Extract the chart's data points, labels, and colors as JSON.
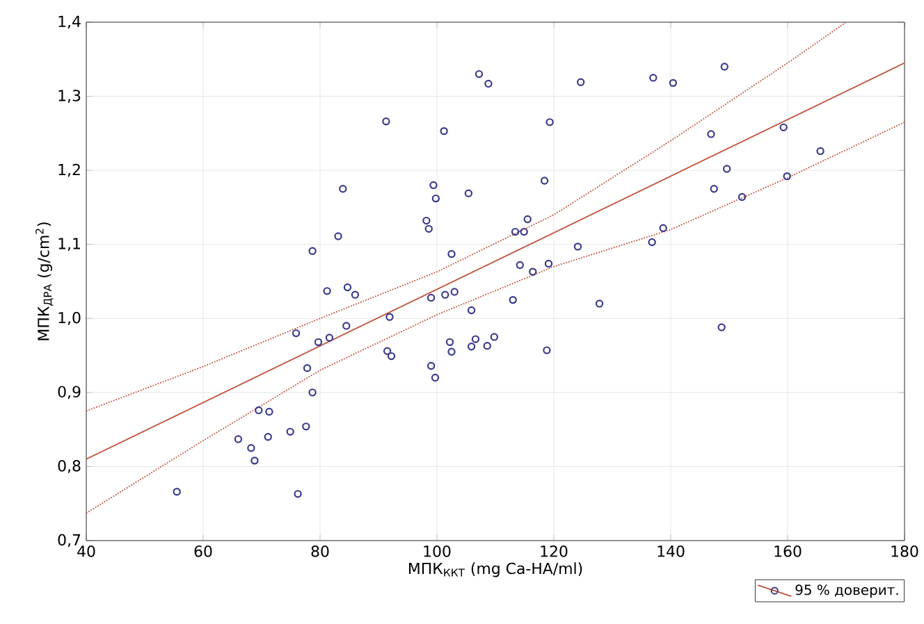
{
  "chart_data": {
    "type": "scatter",
    "xlabel": "МПК$_{ККТ}$ (mg Ca-HA/ml)",
    "ylabel": "МПК$_{ДРА}$ (g/cm$^{2}$)",
    "xlim": [
      40,
      180
    ],
    "xticks": [
      40,
      60,
      80,
      100,
      120,
      140,
      160,
      180
    ],
    "ylim": [
      0.7,
      1.4
    ],
    "yticks": [
      {
        "value": 0.7,
        "label": "0,7"
      },
      {
        "value": 0.8,
        "label": "0,8"
      },
      {
        "value": 0.9,
        "label": "0,9"
      },
      {
        "value": 1.0,
        "label": "1,0"
      },
      {
        "value": 1.1,
        "label": "1,1"
      },
      {
        "value": 1.2,
        "label": "1,2"
      },
      {
        "value": 1.3,
        "label": "1,3"
      },
      {
        "value": 1.4,
        "label": "1,4"
      }
    ],
    "grid": true,
    "legend": "bottom right",
    "series": [
      {
        "color": "#3a3a8c",
        "marker": "circle",
        "x": [
          107.2,
          108.8,
          91.3,
          101.2,
          83.9,
          99.4,
          99.8,
          105.4,
          98.2,
          98.6,
          83.1,
          78.7,
          102.5,
          81.2,
          84.7,
          86.0,
          99.0,
          101.4,
          103.0,
          105.9,
          91.9,
          124.6,
          137.0,
          140.4,
          149.2,
          119.3,
          146.9,
          159.3,
          165.6,
          149.6,
          159.9,
          118.4,
          147.4,
          152.2,
          115.5,
          113.4,
          114.9,
          138.7,
          136.8,
          124.1,
          114.2,
          116.4,
          119.1,
          113.0,
          127.8,
          75.9,
          79.7,
          81.6,
          84.5,
          102.2,
          102.5,
          105.9,
          106.6,
          108.6,
          91.5,
          92.2,
          99.0,
          99.7,
          77.8,
          78.7,
          69.5,
          71.3,
          66.0,
          68.2,
          68.8,
          71.1,
          74.9,
          77.6,
          55.5,
          76.2,
          109.8,
          118.8,
          148.7
        ],
        "values": [
          1.33,
          1.317,
          1.266,
          1.253,
          1.175,
          1.18,
          1.162,
          1.169,
          1.132,
          1.121,
          1.111,
          1.091,
          1.087,
          1.037,
          1.042,
          1.032,
          1.028,
          1.032,
          1.036,
          1.011,
          1.002,
          1.319,
          1.325,
          1.318,
          1.34,
          1.265,
          1.249,
          1.258,
          1.226,
          1.202,
          1.192,
          1.186,
          1.175,
          1.164,
          1.134,
          1.117,
          1.117,
          1.122,
          1.103,
          1.097,
          1.072,
          1.063,
          1.074,
          1.025,
          1.02,
          0.98,
          0.968,
          0.974,
          0.99,
          0.968,
          0.955,
          0.962,
          0.972,
          0.963,
          0.956,
          0.949,
          0.936,
          0.92,
          0.933,
          0.9,
          0.876,
          0.874,
          0.837,
          0.825,
          0.808,
          0.84,
          0.847,
          0.854,
          0.766,
          0.763,
          0.975,
          0.957,
          0.988
        ]
      },
      {
        "type": "line",
        "name": "95 % доверит.",
        "color": "#c0503a",
        "line_style": "solid",
        "x": [
          40,
          180
        ],
        "values": [
          0.81,
          1.345
        ]
      },
      {
        "type": "line",
        "color": "#c0503a",
        "line_style": "dotted",
        "x": [
          40,
          60,
          80,
          100,
          120,
          140,
          160,
          170
        ],
        "values": [
          0.875,
          0.935,
          1.0,
          1.063,
          1.14,
          1.24,
          1.345,
          1.4
        ]
      },
      {
        "type": "line",
        "color": "#c0503a",
        "line_style": "dotted",
        "x": [
          40,
          60,
          80,
          100,
          120,
          140,
          160,
          180
        ],
        "values": [
          0.737,
          0.835,
          0.93,
          1.005,
          1.07,
          1.12,
          1.19,
          1.265
        ]
      }
    ]
  }
}
